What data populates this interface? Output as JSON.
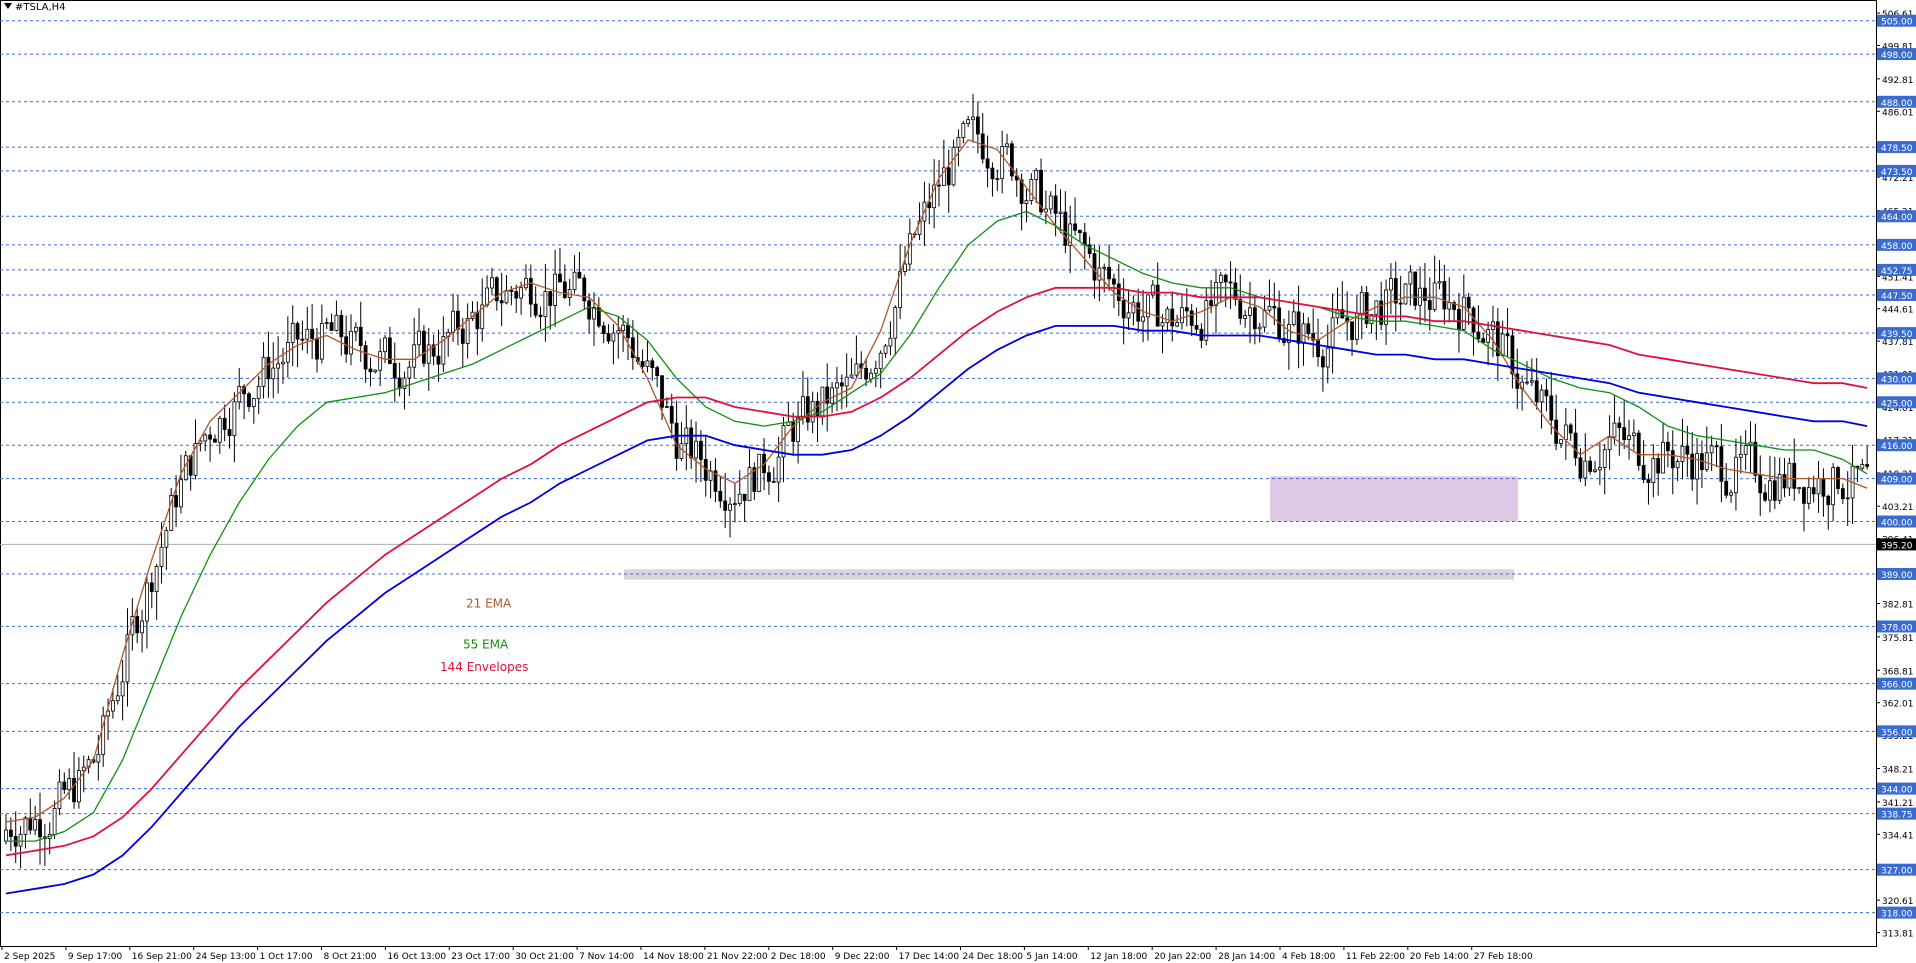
{
  "symbol": "#TSLA,H4",
  "colors": {
    "background": "#ffffff",
    "candle": "#000000",
    "ema21": "#b0582a",
    "ema55": "#109010",
    "envelope_upper": "#e0103c",
    "envelope_lower": "#0000dd",
    "level_line": "#3a6bd0",
    "level_label_bg": "#3a6bd0",
    "current_price_bg": "#000000",
    "resistance_zone": "#d9bfe0",
    "support_zone": "#d0d0d0"
  },
  "chart_data": {
    "type": "candlestick",
    "symbol": "#TSLA,H4",
    "ylim": [
      311.0,
      508.5
    ],
    "x_tick_labels": [
      "2 Sep 2025",
      "9 Sep 17:00",
      "16 Sep 21:00",
      "24 Sep 13:00",
      "1 Oct 17:00",
      "8 Oct 21:00",
      "16 Oct 13:00",
      "23 Oct 17:00",
      "30 Oct 21:00",
      "7 Nov 14:00",
      "14 Nov 18:00",
      "21 Nov 22:00",
      "2 Dec 18:00",
      "9 Dec 22:00",
      "17 Dec 14:00",
      "24 Dec 18:00",
      "5 Jan 14:00",
      "12 Jan 18:00",
      "20 Jan 22:00",
      "28 Jan 14:00",
      "4 Feb 18:00",
      "11 Feb 22:00",
      "20 Feb 14:00",
      "27 Feb 18:00"
    ],
    "y_tick_labels": [
      "506.61",
      "499.81",
      "492.81",
      "486.01",
      "479.01",
      "472.21",
      "465.21",
      "458.41",
      "451.41",
      "444.61",
      "437.81",
      "431.01",
      "424.01",
      "417.21",
      "410.21",
      "403.21",
      "396.41",
      "389.61",
      "382.81",
      "375.81",
      "368.81",
      "362.01",
      "355.21",
      "348.21",
      "341.21",
      "334.41",
      "327.61",
      "320.61",
      "313.81"
    ],
    "levels": [
      "505.00",
      "498.00",
      "488.00",
      "478.50",
      "473.50",
      "464.00",
      "458.00",
      "452.75",
      "447.50",
      "439.50",
      "430.00",
      "425.00",
      "416.00",
      "409.00",
      "400.00",
      "389.00",
      "378.00",
      "366.00",
      "356.00",
      "344.00",
      "338.75",
      "327.00",
      "318.00"
    ],
    "current_price": "395.20",
    "zones": [
      {
        "name": "resistance",
        "from": 400.0,
        "to": 409.5
      },
      {
        "name": "support",
        "from": 387.8,
        "to": 390.0
      }
    ],
    "series": [
      {
        "name": "21 EMA",
        "x": [
          0,
          6,
          12,
          18,
          24,
          30,
          36,
          42,
          48,
          54,
          60,
          66,
          72,
          78,
          84,
          90,
          96,
          102,
          108,
          114,
          120,
          126,
          132,
          138,
          144,
          150,
          156,
          162,
          168,
          174,
          180,
          186,
          192,
          198,
          204,
          210,
          216,
          222,
          228,
          234,
          240,
          246,
          252,
          258,
          264,
          270,
          276,
          282,
          288,
          294,
          300,
          306,
          312,
          318,
          324,
          330,
          336,
          342,
          348,
          354,
          360,
          366,
          372,
          378,
          383
        ],
        "values": [
          337,
          338,
          342,
          350,
          372,
          392,
          410,
          421,
          427,
          433,
          437,
          439,
          436,
          434,
          434,
          438,
          443,
          448,
          450,
          448,
          447,
          441,
          430,
          416,
          411,
          408,
          412,
          420,
          425,
          428,
          440,
          458,
          472,
          480,
          478,
          470,
          462,
          455,
          448,
          444,
          442,
          444,
          447,
          445,
          440,
          438,
          442,
          445,
          447,
          447,
          445,
          438,
          428,
          420,
          414,
          418,
          414,
          414,
          413,
          411,
          410,
          409,
          409,
          409,
          407
        ]
      },
      {
        "name": "55 EMA",
        "x": [
          0,
          6,
          12,
          18,
          24,
          30,
          36,
          42,
          48,
          54,
          60,
          66,
          72,
          78,
          84,
          90,
          96,
          102,
          108,
          114,
          120,
          126,
          132,
          138,
          144,
          150,
          156,
          162,
          168,
          174,
          180,
          186,
          192,
          198,
          204,
          210,
          216,
          222,
          228,
          234,
          240,
          246,
          252,
          258,
          264,
          270,
          276,
          282,
          288,
          294,
          300,
          306,
          312,
          318,
          324,
          330,
          336,
          342,
          348,
          354,
          360,
          366,
          372,
          378,
          383
        ],
        "values": [
          333,
          333,
          335,
          339,
          350,
          365,
          380,
          393,
          404,
          413,
          420,
          425,
          426,
          427,
          429,
          431,
          433,
          436,
          439,
          442,
          445,
          443,
          438,
          430,
          424,
          421,
          420,
          421,
          423,
          427,
          431,
          439,
          449,
          458,
          463,
          465,
          462,
          458,
          455,
          452,
          450,
          449,
          449,
          447,
          446,
          445,
          443,
          442,
          442,
          441,
          440,
          436,
          433,
          430,
          428,
          427,
          424,
          420,
          418,
          417,
          416,
          415,
          415,
          413,
          410
        ]
      },
      {
        "name": "144 Envelopes",
        "x": [
          0,
          6,
          12,
          18,
          24,
          30,
          36,
          42,
          48,
          54,
          60,
          66,
          72,
          78,
          84,
          90,
          96,
          102,
          108,
          114,
          120,
          126,
          132,
          138,
          144,
          150,
          156,
          162,
          168,
          174,
          180,
          186,
          192,
          198,
          204,
          210,
          216,
          222,
          228,
          234,
          240,
          246,
          252,
          258,
          264,
          270,
          276,
          282,
          288,
          294,
          300,
          306,
          312,
          318,
          324,
          330,
          336,
          342,
          348,
          354,
          360,
          366,
          372,
          378,
          383
        ],
        "values": [
          330,
          331,
          332,
          334,
          338,
          344,
          351,
          358,
          365,
          371,
          377,
          383,
          388,
          393,
          397,
          401,
          405,
          409,
          412,
          416,
          419,
          422,
          425,
          426,
          426,
          424,
          423,
          422,
          422,
          423,
          426,
          430,
          435,
          440,
          444,
          447,
          449,
          449,
          449,
          448,
          448,
          447,
          447,
          447,
          446,
          445,
          444,
          443,
          443,
          442,
          442,
          441,
          440,
          439,
          438,
          437,
          435,
          434,
          433,
          432,
          431,
          430,
          429,
          429,
          428
        ]
      },
      {
        "name": "144 Envelopes lower",
        "x": [
          0,
          6,
          12,
          18,
          24,
          30,
          36,
          42,
          48,
          54,
          60,
          66,
          72,
          78,
          84,
          90,
          96,
          102,
          108,
          114,
          120,
          126,
          132,
          138,
          144,
          150,
          156,
          162,
          168,
          174,
          180,
          186,
          192,
          198,
          204,
          210,
          216,
          222,
          228,
          234,
          240,
          246,
          252,
          258,
          264,
          270,
          276,
          282,
          288,
          294,
          300,
          306,
          312,
          318,
          324,
          330,
          336,
          342,
          348,
          354,
          360,
          366,
          372,
          378,
          383
        ],
        "values": [
          322,
          323,
          324,
          326,
          330,
          336,
          343,
          350,
          357,
          363,
          369,
          375,
          380,
          385,
          389,
          393,
          397,
          401,
          404,
          408,
          411,
          414,
          417,
          418,
          418,
          416,
          415,
          414,
          414,
          415,
          418,
          422,
          427,
          432,
          436,
          439,
          441,
          441,
          441,
          440,
          440,
          439,
          439,
          439,
          438,
          437,
          436,
          435,
          435,
          434,
          434,
          433,
          432,
          431,
          430,
          429,
          427,
          426,
          425,
          424,
          423,
          422,
          421,
          421,
          420
        ]
      }
    ],
    "annotations": [
      "21 EMA",
      "55 EMA",
      "144 Envelopes"
    ]
  }
}
